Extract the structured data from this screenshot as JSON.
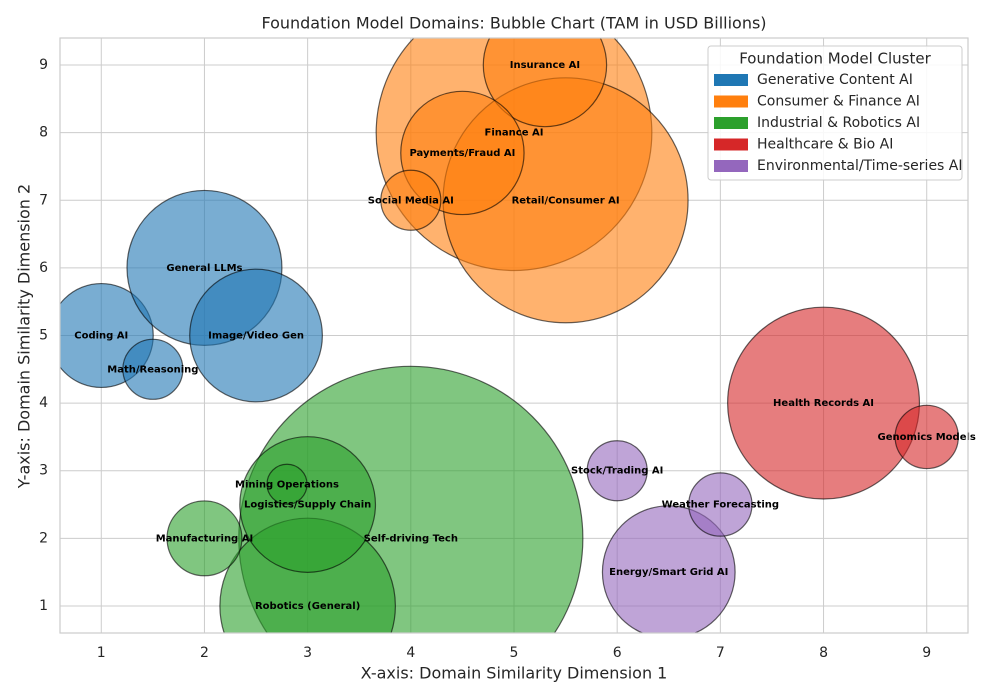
{
  "chart_data": {
    "type": "bubble",
    "title": "Foundation Model Domains: Bubble Chart (TAM in USD Billions)",
    "x_label": "X-axis: Domain Similarity Dimension 1",
    "y_label": "Y-axis: Domain Similarity Dimension 2",
    "legend_title": "Foundation Model Cluster",
    "legend_position": "upper right",
    "grid": true,
    "xlim": [
      0.6,
      9.4
    ],
    "ylim": [
      0.6,
      9.4
    ],
    "xticks": [
      1,
      2,
      3,
      4,
      5,
      6,
      7,
      8,
      9
    ],
    "yticks": [
      1,
      2,
      3,
      4,
      5,
      6,
      7,
      8,
      9
    ],
    "series": [
      {
        "name": "Generative Content AI",
        "color": "#1f77b4",
        "labels": [
          "Coding AI",
          "General LLMs",
          "Image/Video Gen",
          "Math/Reasoning"
        ],
        "x": [
          1,
          2,
          2.5,
          1.5
        ],
        "values": [
          5,
          6,
          5,
          4.5
        ],
        "sizes": [
          27,
          60,
          44,
          9
        ]
      },
      {
        "name": "Consumer & Finance AI",
        "color": "#ff7f0e",
        "labels": [
          "Finance AI",
          "Retail/Consumer AI",
          "Insurance AI",
          "Payments/Fraud AI",
          "Social Media AI"
        ],
        "x": [
          5,
          5.5,
          5.3,
          4.5,
          4
        ],
        "values": [
          8,
          7,
          9,
          7.7,
          7
        ],
        "sizes": [
          190,
          150,
          38,
          38,
          9
        ]
      },
      {
        "name": "Industrial & Robotics AI",
        "color": "#2ca02c",
        "labels": [
          "Self-driving Tech",
          "Robotics (General)",
          "Logistics/Supply Chain",
          "Manufacturing AI",
          "Mining Operations"
        ],
        "x": [
          4,
          3,
          3,
          2,
          2.8
        ],
        "values": [
          2,
          1,
          2.5,
          2,
          2.8
        ],
        "sizes": [
          296,
          77,
          46,
          14,
          4
        ]
      },
      {
        "name": "Healthcare & Bio AI",
        "color": "#d62728",
        "labels": [
          "Health Records AI",
          "Genomics Models"
        ],
        "x": [
          8,
          9
        ],
        "values": [
          4,
          3.5
        ],
        "sizes": [
          92,
          10
        ]
      },
      {
        "name": "Environmental/Time-series AI",
        "color": "#9467bd",
        "labels": [
          "Energy/Smart Grid AI",
          "Stock/Trading AI",
          "Weather Forecasting"
        ],
        "x": [
          6.5,
          6,
          7
        ],
        "values": [
          1.5,
          3,
          2.5
        ],
        "sizes": [
          44,
          9,
          10
        ]
      }
    ]
  }
}
